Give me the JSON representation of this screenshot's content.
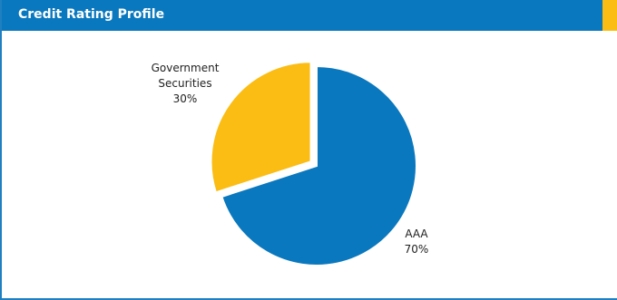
{
  "header": {
    "title": "Credit Rating Profile"
  },
  "colors": {
    "header_bg": "#0a78be",
    "accent": "#fbbd13",
    "aaa": "#0a78be",
    "gov": "#fbbd13"
  },
  "chart_data": {
    "type": "pie",
    "title": "",
    "slices": [
      {
        "label_lines": [
          "AAA"
        ],
        "value_text": "70%",
        "value": 70,
        "color": "#0a78be"
      },
      {
        "label_lines": [
          "Government",
          "Securities"
        ],
        "value_text": "30%",
        "value": 30,
        "color": "#fbbd13"
      }
    ]
  }
}
